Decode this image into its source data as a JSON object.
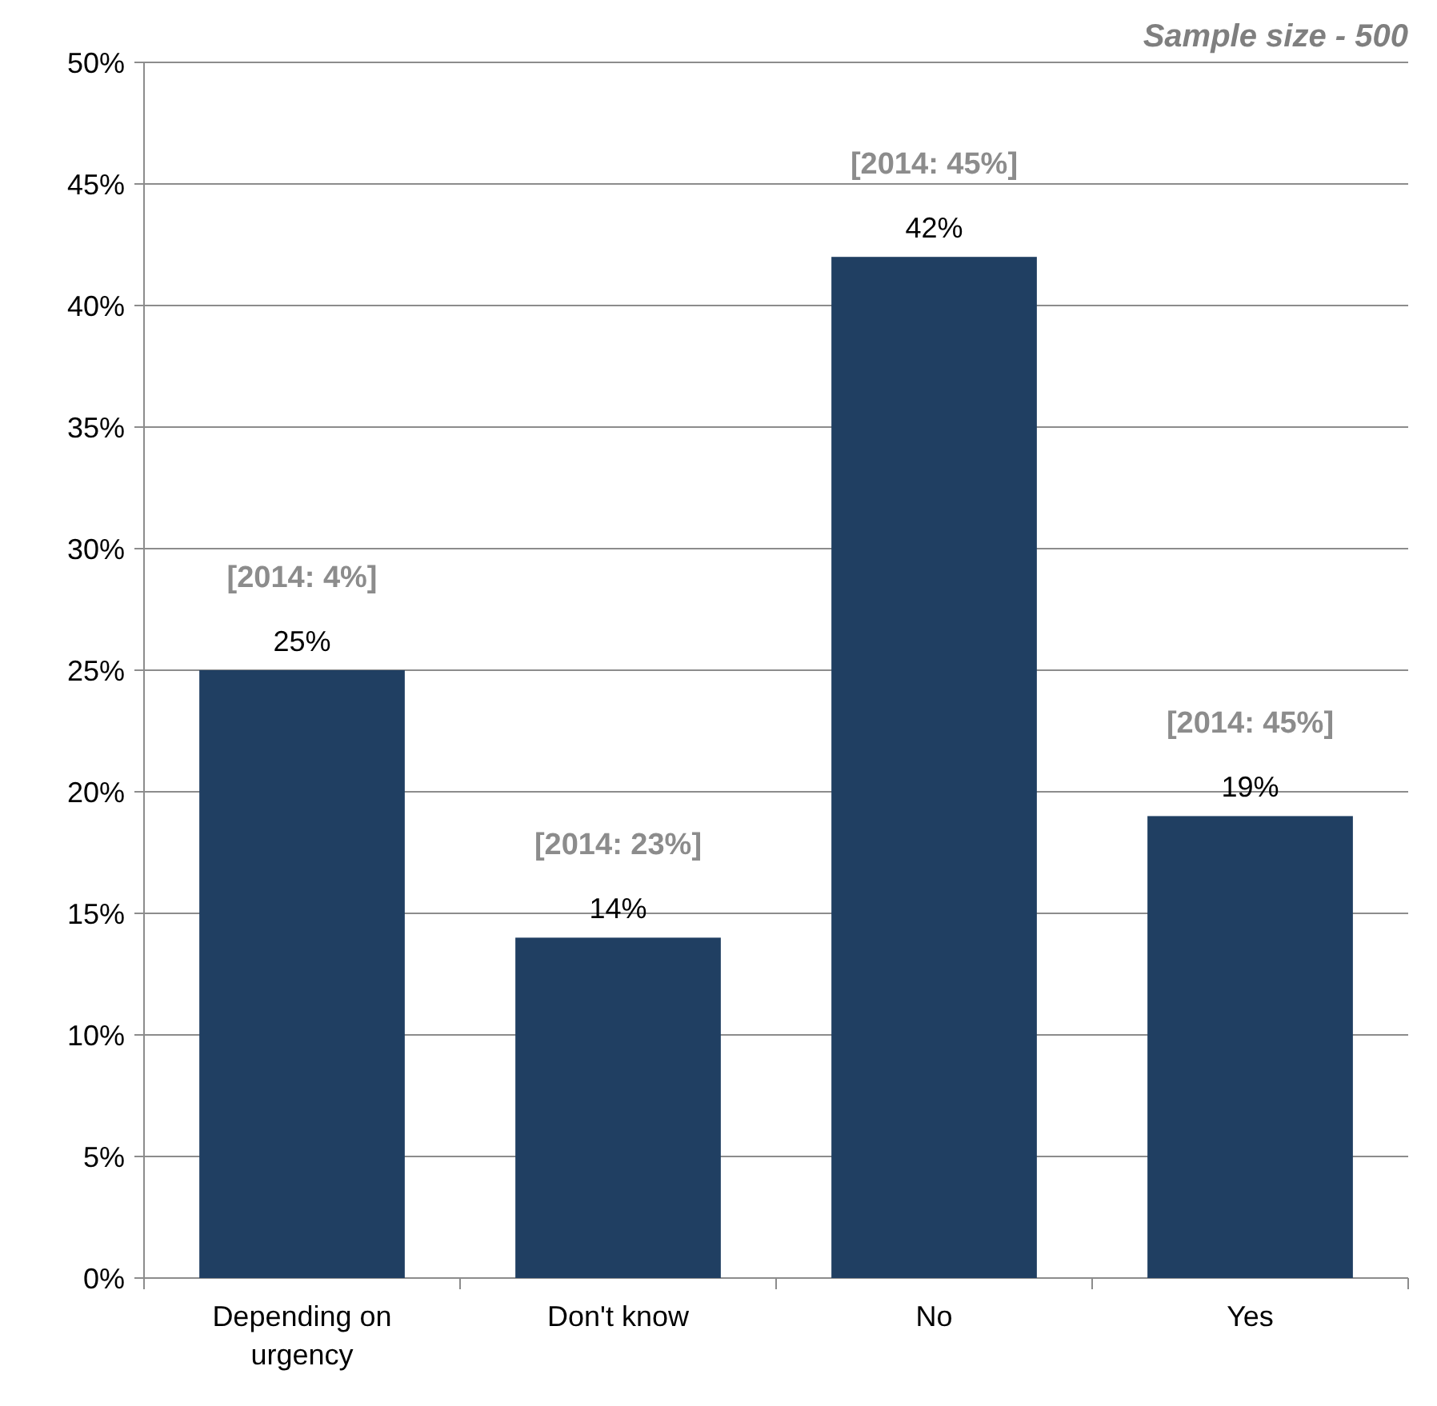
{
  "chart_data": {
    "type": "bar",
    "categories": [
      "Depending on urgency",
      "Don't know",
      "No",
      "Yes"
    ],
    "values": [
      25,
      14,
      42,
      19
    ],
    "value_labels": [
      "25%",
      "14%",
      "42%",
      "19%"
    ],
    "color": "#203f62",
    "ylim": [
      0,
      50
    ],
    "yticks": [
      {
        "value": 0,
        "label": "0%"
      },
      {
        "value": 5,
        "label": "5%"
      },
      {
        "value": 10,
        "label": "10%"
      },
      {
        "value": 15,
        "label": "15%"
      },
      {
        "value": 20,
        "label": "20%"
      },
      {
        "value": 25,
        "label": "25%"
      },
      {
        "value": 30,
        "label": "30%"
      },
      {
        "value": 35,
        "label": "35%"
      },
      {
        "value": 40,
        "label": "40%"
      },
      {
        "value": 45,
        "label": "45%"
      },
      {
        "value": 50,
        "label": "50%"
      }
    ],
    "grid": "y",
    "annotations": [
      "Sample size - 500",
      "[2014: 4%]",
      "[2014: 23%]",
      "[2014: 45%]",
      "[2014: 45%]"
    ]
  }
}
